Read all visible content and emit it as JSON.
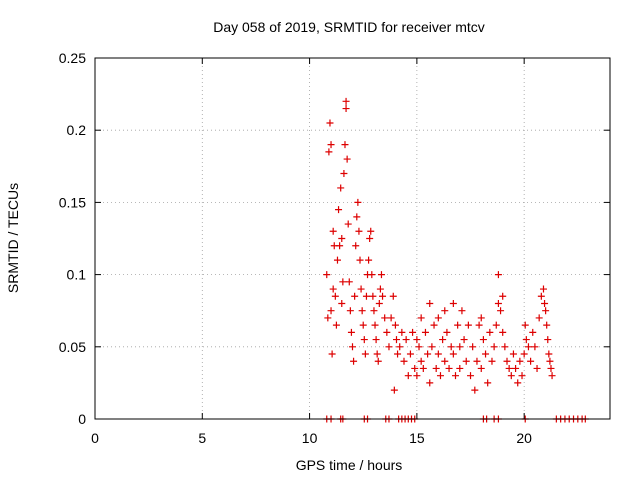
{
  "chart_data": {
    "type": "scatter",
    "title": "Day 058 of 2019, SRMTID for receiver mtcv",
    "xlabel": "GPS time / hours",
    "ylabel": "SRMTID / TECUs",
    "xlim": [
      0,
      24
    ],
    "ylim": [
      0,
      0.25
    ],
    "xticks": [
      0,
      5,
      10,
      15,
      20
    ],
    "xtick_labels": [
      "0",
      "5",
      "10",
      "15",
      "20"
    ],
    "yticks": [
      0,
      0.05,
      0.1,
      0.15,
      0.2,
      0.25
    ],
    "ytick_labels": [
      "0",
      "0.05",
      "0.1",
      "0.15",
      "0.2",
      "0.25"
    ],
    "grid": true,
    "marker": "+",
    "series": [
      {
        "name": "SRMTID",
        "color": "#dd0000",
        "points": [
          [
            10.8,
            0.1
          ],
          [
            10.85,
            0.07
          ],
          [
            10.9,
            0.185
          ],
          [
            10.95,
            0.205
          ],
          [
            11.0,
            0.19
          ],
          [
            11.0,
            0.075
          ],
          [
            11.05,
            0.045
          ],
          [
            11.1,
            0.13
          ],
          [
            11.1,
            0.09
          ],
          [
            11.15,
            0.12
          ],
          [
            11.2,
            0.085
          ],
          [
            11.25,
            0.065
          ],
          [
            11.3,
            0.11
          ],
          [
            11.35,
            0.145
          ],
          [
            11.4,
            0.12
          ],
          [
            11.45,
            0.16
          ],
          [
            11.5,
            0.125
          ],
          [
            11.5,
            0.08
          ],
          [
            11.55,
            0.095
          ],
          [
            11.6,
            0.17
          ],
          [
            11.65,
            0.19
          ],
          [
            11.7,
            0.22
          ],
          [
            11.7,
            0.215
          ],
          [
            11.75,
            0.18
          ],
          [
            11.8,
            0.135
          ],
          [
            11.85,
            0.095
          ],
          [
            11.9,
            0.075
          ],
          [
            11.95,
            0.06
          ],
          [
            12.0,
            0.05
          ],
          [
            12.05,
            0.04
          ],
          [
            12.1,
            0.085
          ],
          [
            12.15,
            0.12
          ],
          [
            12.2,
            0.14
          ],
          [
            12.25,
            0.15
          ],
          [
            12.3,
            0.13
          ],
          [
            12.35,
            0.11
          ],
          [
            12.4,
            0.09
          ],
          [
            12.45,
            0.075
          ],
          [
            12.5,
            0.065
          ],
          [
            12.55,
            0.055
          ],
          [
            12.6,
            0.045
          ],
          [
            12.65,
            0.085
          ],
          [
            12.7,
            0.1
          ],
          [
            12.75,
            0.11
          ],
          [
            12.8,
            0.125
          ],
          [
            12.85,
            0.13
          ],
          [
            12.9,
            0.1
          ],
          [
            12.95,
            0.085
          ],
          [
            13.0,
            0.075
          ],
          [
            13.05,
            0.065
          ],
          [
            13.1,
            0.055
          ],
          [
            13.15,
            0.045
          ],
          [
            13.2,
            0.04
          ],
          [
            13.25,
            0.08
          ],
          [
            13.3,
            0.09
          ],
          [
            13.35,
            0.1
          ],
          [
            13.4,
            0.085
          ],
          [
            13.5,
            0.07
          ],
          [
            13.6,
            0.06
          ],
          [
            13.7,
            0.05
          ],
          [
            13.8,
            0.07
          ],
          [
            13.9,
            0.085
          ],
          [
            13.95,
            0.02
          ],
          [
            14.0,
            0.065
          ],
          [
            14.05,
            0.055
          ],
          [
            14.1,
            0.045
          ],
          [
            14.2,
            0.05
          ],
          [
            14.3,
            0.06
          ],
          [
            14.4,
            0.04
          ],
          [
            14.5,
            0.055
          ],
          [
            14.6,
            0.03
          ],
          [
            14.7,
            0.045
          ],
          [
            14.8,
            0.06
          ],
          [
            14.9,
            0.035
          ],
          [
            15.0,
            0.055
          ],
          [
            15.0,
            0.03
          ],
          [
            15.1,
            0.05
          ],
          [
            15.2,
            0.07
          ],
          [
            15.2,
            0.04
          ],
          [
            15.3,
            0.035
          ],
          [
            15.4,
            0.06
          ],
          [
            15.5,
            0.045
          ],
          [
            15.6,
            0.025
          ],
          [
            15.6,
            0.08
          ],
          [
            15.7,
            0.05
          ],
          [
            15.8,
            0.065
          ],
          [
            15.9,
            0.035
          ],
          [
            16.0,
            0.07
          ],
          [
            16.0,
            0.045
          ],
          [
            16.1,
            0.03
          ],
          [
            16.2,
            0.055
          ],
          [
            16.3,
            0.075
          ],
          [
            16.3,
            0.04
          ],
          [
            16.4,
            0.06
          ],
          [
            16.5,
            0.035
          ],
          [
            16.6,
            0.05
          ],
          [
            16.7,
            0.08
          ],
          [
            16.7,
            0.045
          ],
          [
            16.8,
            0.03
          ],
          [
            16.9,
            0.065
          ],
          [
            17.0,
            0.05
          ],
          [
            17.0,
            0.035
          ],
          [
            17.1,
            0.075
          ],
          [
            17.2,
            0.055
          ],
          [
            17.3,
            0.04
          ],
          [
            17.4,
            0.065
          ],
          [
            17.5,
            0.03
          ],
          [
            17.6,
            0.05
          ],
          [
            17.7,
            0.02
          ],
          [
            17.8,
            0.04
          ],
          [
            17.9,
            0.065
          ],
          [
            18.0,
            0.07
          ],
          [
            18.0,
            0.035
          ],
          [
            18.1,
            0.055
          ],
          [
            18.2,
            0.045
          ],
          [
            18.3,
            0.025
          ],
          [
            18.4,
            0.06
          ],
          [
            18.5,
            0.04
          ],
          [
            18.6,
            0.05
          ],
          [
            18.7,
            0.065
          ],
          [
            18.8,
            0.08
          ],
          [
            18.8,
            0.1
          ],
          [
            18.9,
            0.075
          ],
          [
            19.0,
            0.06
          ],
          [
            19.0,
            0.085
          ],
          [
            19.1,
            0.05
          ],
          [
            19.2,
            0.04
          ],
          [
            19.3,
            0.035
          ],
          [
            19.4,
            0.03
          ],
          [
            19.5,
            0.045
          ],
          [
            19.6,
            0.035
          ],
          [
            19.7,
            0.025
          ],
          [
            19.8,
            0.04
          ],
          [
            19.9,
            0.03
          ],
          [
            20.0,
            0.045
          ],
          [
            20.05,
            0.065
          ],
          [
            20.1,
            0.055
          ],
          [
            20.2,
            0.05
          ],
          [
            20.3,
            0.04
          ],
          [
            20.4,
            0.06
          ],
          [
            20.5,
            0.05
          ],
          [
            20.6,
            0.035
          ],
          [
            20.7,
            0.07
          ],
          [
            20.8,
            0.085
          ],
          [
            20.9,
            0.09
          ],
          [
            20.95,
            0.08
          ],
          [
            21.0,
            0.075
          ],
          [
            21.05,
            0.065
          ],
          [
            21.1,
            0.055
          ],
          [
            21.15,
            0.045
          ],
          [
            21.2,
            0.04
          ],
          [
            21.25,
            0.035
          ],
          [
            21.3,
            0.03
          ],
          [
            10.8,
            0.0
          ],
          [
            11.0,
            0.0
          ],
          [
            11.45,
            0.0
          ],
          [
            11.55,
            0.0
          ],
          [
            12.55,
            0.0
          ],
          [
            12.7,
            0.0
          ],
          [
            13.55,
            0.0
          ],
          [
            13.7,
            0.0
          ],
          [
            14.15,
            0.0
          ],
          [
            14.3,
            0.0
          ],
          [
            14.45,
            0.0
          ],
          [
            14.6,
            0.0
          ],
          [
            14.75,
            0.0
          ],
          [
            14.9,
            0.0
          ],
          [
            18.1,
            0.0
          ],
          [
            18.25,
            0.0
          ],
          [
            18.6,
            0.0
          ],
          [
            18.8,
            0.0
          ],
          [
            20.05,
            0.0
          ],
          [
            21.5,
            0.0
          ],
          [
            21.7,
            0.0
          ],
          [
            21.9,
            0.0
          ],
          [
            22.1,
            0.0
          ],
          [
            22.3,
            0.0
          ],
          [
            22.5,
            0.0
          ],
          [
            22.7,
            0.0
          ],
          [
            22.85,
            0.0
          ]
        ]
      }
    ]
  }
}
